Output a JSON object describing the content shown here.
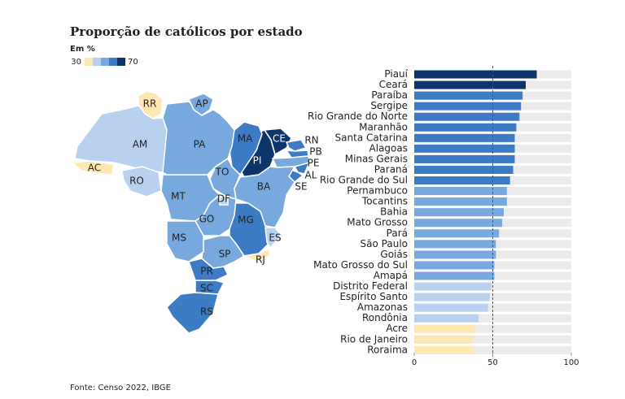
{
  "chart_data": {
    "type": "hbar",
    "title": "Proporção de católicos por estado",
    "unit_label": "Em %",
    "legend": {
      "min_label": "30",
      "max_label": "70",
      "colors": [
        "#fde8b4",
        "#b8d1ee",
        "#78a9de",
        "#3d7cc4",
        "#0c356a"
      ]
    },
    "categories": [
      "Piauí",
      "Ceará",
      "Paraíba",
      "Sergipe",
      "Rio Grande do Norte",
      "Maranhão",
      "Santa Catarina",
      "Alagoas",
      "Minas Gerais",
      "Paraná",
      "Rio Grande do Sul",
      "Pernambuco",
      "Tocantins",
      "Bahia",
      "Mato Grosso",
      "Pará",
      "São Paulo",
      "Goiás",
      "Mato Grosso do Sul",
      "Amapá",
      "Distrito Federal",
      "Espírito Santo",
      "Amazonas",
      "Rondônia",
      "Acre",
      "Rio de Janeiro",
      "Roraima"
    ],
    "abbreviations": [
      "PI",
      "CE",
      "PB",
      "SE",
      "RN",
      "MA",
      "SC",
      "AL",
      "MG",
      "PR",
      "RS",
      "PE",
      "TO",
      "BA",
      "MT",
      "PA",
      "SP",
      "GO",
      "MS",
      "AP",
      "DF",
      "ES",
      "AM",
      "RO",
      "AC",
      "RJ",
      "RR"
    ],
    "values": [
      78,
      71,
      69,
      68,
      67,
      65,
      64,
      64,
      64,
      63,
      61,
      59,
      59,
      57,
      56,
      54,
      52,
      52,
      51,
      51,
      49,
      48,
      47,
      41,
      39,
      38,
      38
    ],
    "colors": [
      "#0c356a",
      "#0c356a",
      "#3d7cc4",
      "#3d7cc4",
      "#3d7cc4",
      "#3d7cc4",
      "#3d7cc4",
      "#3d7cc4",
      "#3d7cc4",
      "#3d7cc4",
      "#3d7cc4",
      "#78a9de",
      "#78a9de",
      "#78a9de",
      "#78a9de",
      "#78a9de",
      "#78a9de",
      "#78a9de",
      "#78a9de",
      "#78a9de",
      "#b8d1ee",
      "#b8d1ee",
      "#b8d1ee",
      "#b8d1ee",
      "#fde8b4",
      "#fde8b4",
      "#fde8b4"
    ],
    "xlim": [
      0,
      100
    ],
    "xticks": [
      0,
      50,
      100
    ],
    "reference_line": 50,
    "source": "Fonte: Censo 2022, IBGE"
  }
}
